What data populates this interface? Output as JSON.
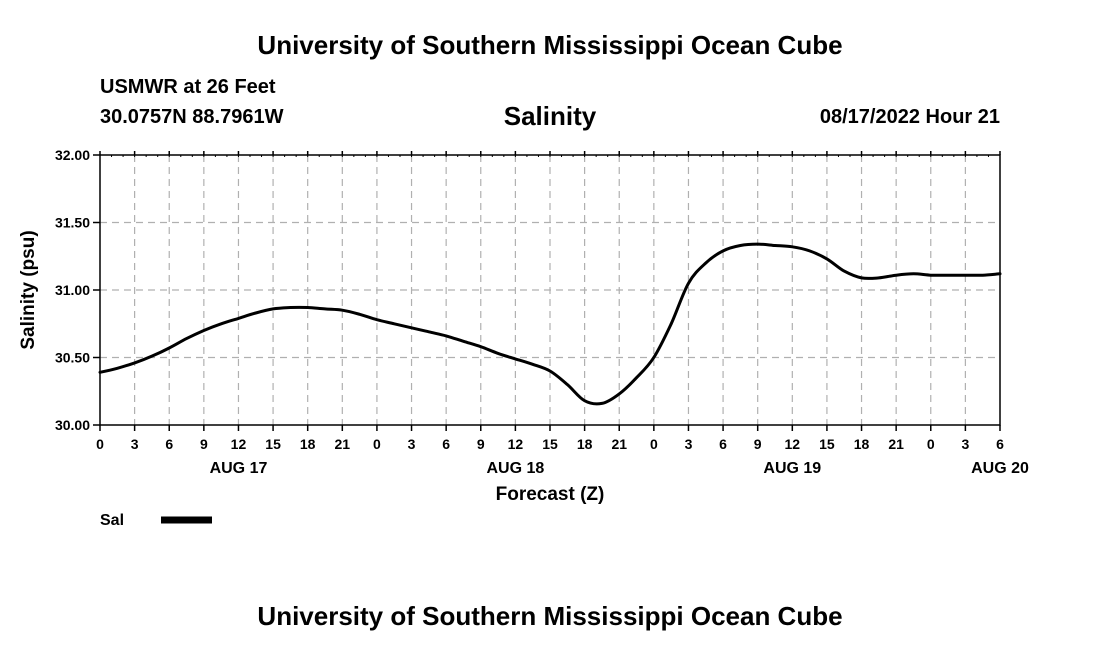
{
  "header": {
    "title": "University of Southern Mississippi Ocean Cube",
    "station": "USMWR at 26 Feet",
    "coords": "30.0757N  88.7961W",
    "issued": "08/17/2022 Hour 21"
  },
  "footer": {
    "title": "University of Southern Mississippi Ocean Cube"
  },
  "chart_data": {
    "type": "line",
    "title": "Salinity",
    "xlabel": "Forecast (Z)",
    "ylabel": "Salinity (psu)",
    "ylim": [
      30.0,
      32.0
    ],
    "yticks": [
      "30.00",
      "30.50",
      "31.00",
      "31.50",
      "32.00"
    ],
    "xlim": [
      0,
      78
    ],
    "xtick_labels": [
      "0",
      "3",
      "6",
      "9",
      "12",
      "15",
      "18",
      "21",
      "0",
      "3",
      "6",
      "9",
      "12",
      "15",
      "18",
      "21",
      "0",
      "3",
      "6",
      "9",
      "12",
      "15",
      "18",
      "21",
      "0",
      "3",
      "6"
    ],
    "day_labels": [
      {
        "hour": 12,
        "label": "AUG 17"
      },
      {
        "hour": 36,
        "label": "AUG 18"
      },
      {
        "hour": 60,
        "label": "AUG 19"
      },
      {
        "hour": 78,
        "label": "AUG 20"
      }
    ],
    "grid": true,
    "line_color": "#000000",
    "series": [
      {
        "name": "Sal",
        "x": [
          0,
          1.5,
          3,
          4.5,
          6,
          7.5,
          9,
          10.5,
          12,
          13.5,
          15,
          16.5,
          18,
          19.5,
          21,
          22.5,
          24,
          25.5,
          27,
          28.5,
          30,
          31.5,
          33,
          34.5,
          36,
          37.5,
          39,
          40.5,
          42,
          43.5,
          45,
          46.5,
          48,
          49.5,
          51,
          52.5,
          54,
          55.5,
          57,
          58.5,
          60,
          61.5,
          63,
          64.5,
          66,
          67.5,
          69,
          70.5,
          72,
          73.5,
          75,
          76.5,
          78
        ],
        "y": [
          30.39,
          30.42,
          30.46,
          30.51,
          30.57,
          30.64,
          30.7,
          30.75,
          30.79,
          30.83,
          30.86,
          30.87,
          30.87,
          30.86,
          30.85,
          30.82,
          30.78,
          30.75,
          30.72,
          30.69,
          30.66,
          30.62,
          30.58,
          30.53,
          30.49,
          30.45,
          30.4,
          30.3,
          30.18,
          30.16,
          30.23,
          30.35,
          30.5,
          30.75,
          31.05,
          31.2,
          31.29,
          31.33,
          31.34,
          31.33,
          31.32,
          31.29,
          31.23,
          31.14,
          31.09,
          31.09,
          31.11,
          31.12,
          31.11,
          31.11,
          31.11,
          31.11,
          31.12
        ]
      }
    ],
    "legend": {
      "position": "bottom-left",
      "label": "Sal"
    }
  }
}
